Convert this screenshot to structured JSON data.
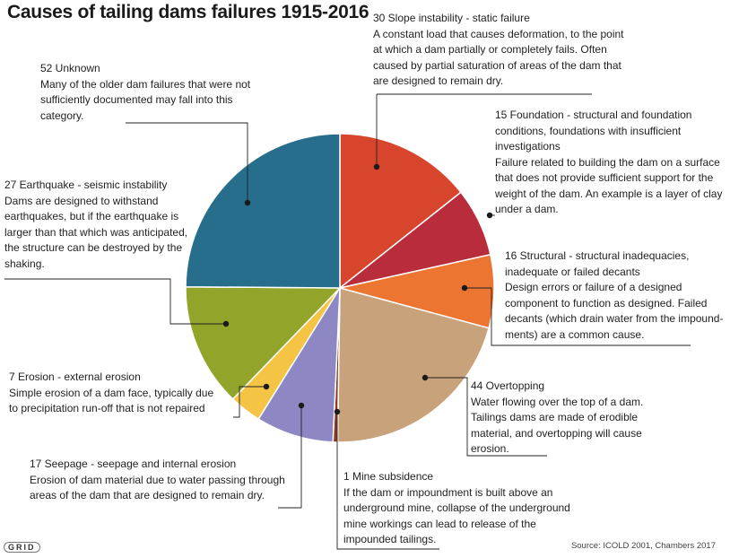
{
  "chart_data": {
    "type": "pie",
    "title": "Causes of tailing dams failures 1915-2016",
    "source": "Source: ICOLD 2001, Chambers 2017",
    "start_angle_deg": 0,
    "direction": "clockwise",
    "slices": [
      {
        "value": 30,
        "head": "30 Slope instability - static failure",
        "desc": [
          "A constant load that causes deformation, to the point",
          "at which a dam partially or completely fails. Often",
          "caused by partial saturation of areas of the dam that",
          "are designed to remain dry."
        ],
        "color": "#d7452d"
      },
      {
        "value": 15,
        "head": "15 Foundation - structural and foundation",
        "desc": [
          "conditions, foundations with insufficient",
          "investigations",
          "Failure related to building the dam on a surface",
          "that does not provide sufficient support for the",
          "weight of the dam.  An example is a layer of clay",
          "under a dam."
        ],
        "color": "#b82c3b"
      },
      {
        "value": 16,
        "head": "16 Structural - structural inadequacies,",
        "desc": [
          "inadequate or failed decants",
          "Design errors or failure of a designed",
          "component to function as designed.  Failed",
          "decants (which drain water from the impound-",
          "ments) are a common cause."
        ],
        "color": "#ec7532"
      },
      {
        "value": 44,
        "head": "44 Overtopping",
        "desc": [
          "Water flowing over the top of a dam.",
          "Tailings dams are made of erodible",
          "material, and overtopping will cause",
          "erosion."
        ],
        "color": "#c8a27a"
      },
      {
        "value": 1,
        "head": "1 Mine subsidence",
        "desc": [
          "If the dam or impoundment is built above an",
          "underground mine, collapse of the underground",
          "mine workings can lead to release of the",
          "impounded tailings."
        ],
        "color": "#8b3a1e"
      },
      {
        "value": 17,
        "head": "17 Seepage - seepage and internal erosion",
        "desc": [
          "Erosion of dam material due to water passing through",
          "areas of the dam that are designed to remain dry."
        ],
        "color": "#8d88c4"
      },
      {
        "value": 7,
        "head": "7 Erosion - external erosion",
        "desc": [
          "Simple erosion of a dam face, typically due",
          "to precipitation run-off that is not repaired"
        ],
        "color": "#f6c445"
      },
      {
        "value": 27,
        "head": "27 Earthquake - seismic instability",
        "desc": [
          "Dams are designed to withstand",
          "earthquakes, but if the earthquake is",
          "larger than that which was anticipated,",
          "the structure can be destroyed by the",
          "shaking."
        ],
        "color": "#93a42a"
      },
      {
        "value": 52,
        "head": "52 Unknown",
        "desc": [
          "Many of the older dam failures that were not",
          "sufficiently documented may fall into this",
          "category."
        ],
        "color": "#276d8c"
      }
    ]
  },
  "logo_text": "GRID"
}
